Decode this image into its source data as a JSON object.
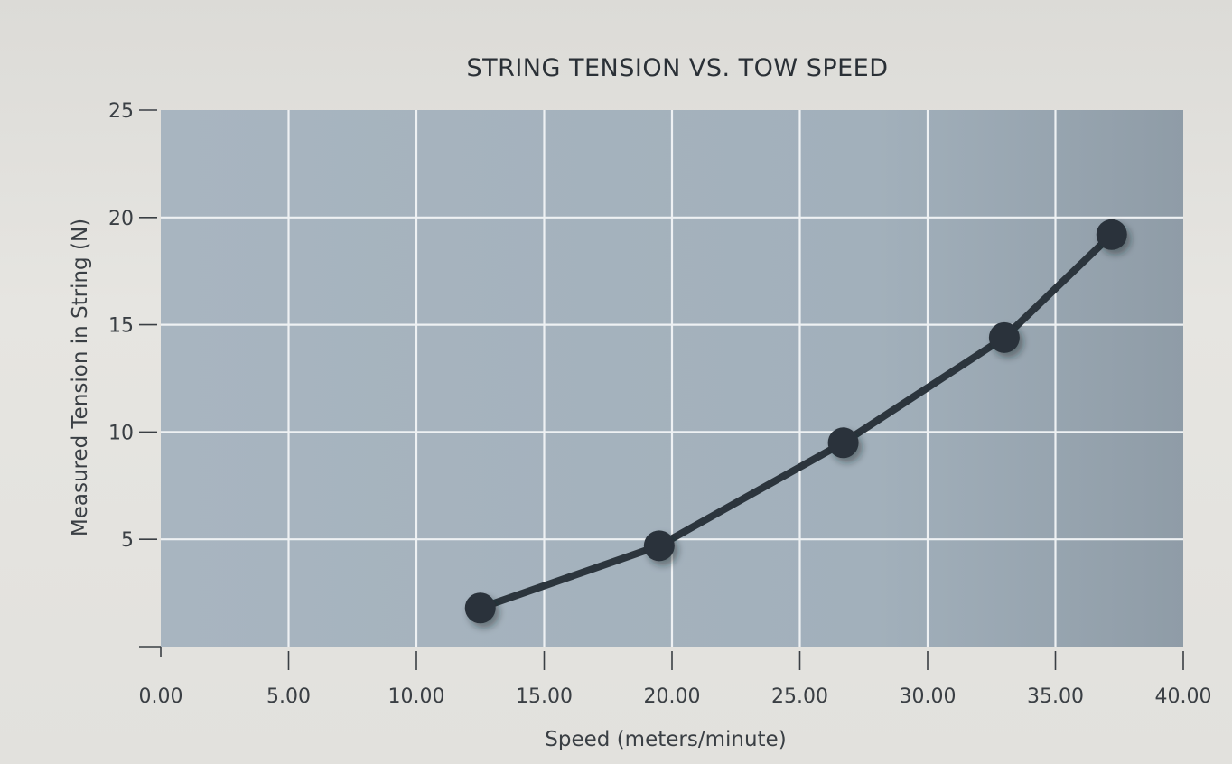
{
  "chart_data": {
    "type": "line",
    "title": "STRING TENSION VS. TOW SPEED",
    "xlabel": "Speed (meters/minute)",
    "ylabel": "Measured Tension in String (N)",
    "xlim": [
      0,
      40
    ],
    "ylim": [
      0,
      25
    ],
    "x_ticks": [
      0,
      5,
      10,
      15,
      20,
      25,
      30,
      35,
      40
    ],
    "x_tick_labels": [
      "0.00",
      "5.00",
      "10.00",
      "15.00",
      "20.00",
      "25.00",
      "30.00",
      "35.00",
      "40.00"
    ],
    "y_ticks": [
      5,
      10,
      15,
      20,
      25
    ],
    "y_tick_labels": [
      "5",
      "10",
      "15",
      "20",
      "25"
    ],
    "grid": true,
    "series": [
      {
        "x": [
          12.5,
          19.5,
          26.7,
          33.0,
          37.2
        ],
        "y": [
          1.8,
          4.7,
          9.5,
          14.4,
          19.2
        ]
      }
    ],
    "colors": {
      "plot_background": "#a5b2bd",
      "line": "#2c353d",
      "marker": "#29323a"
    }
  }
}
